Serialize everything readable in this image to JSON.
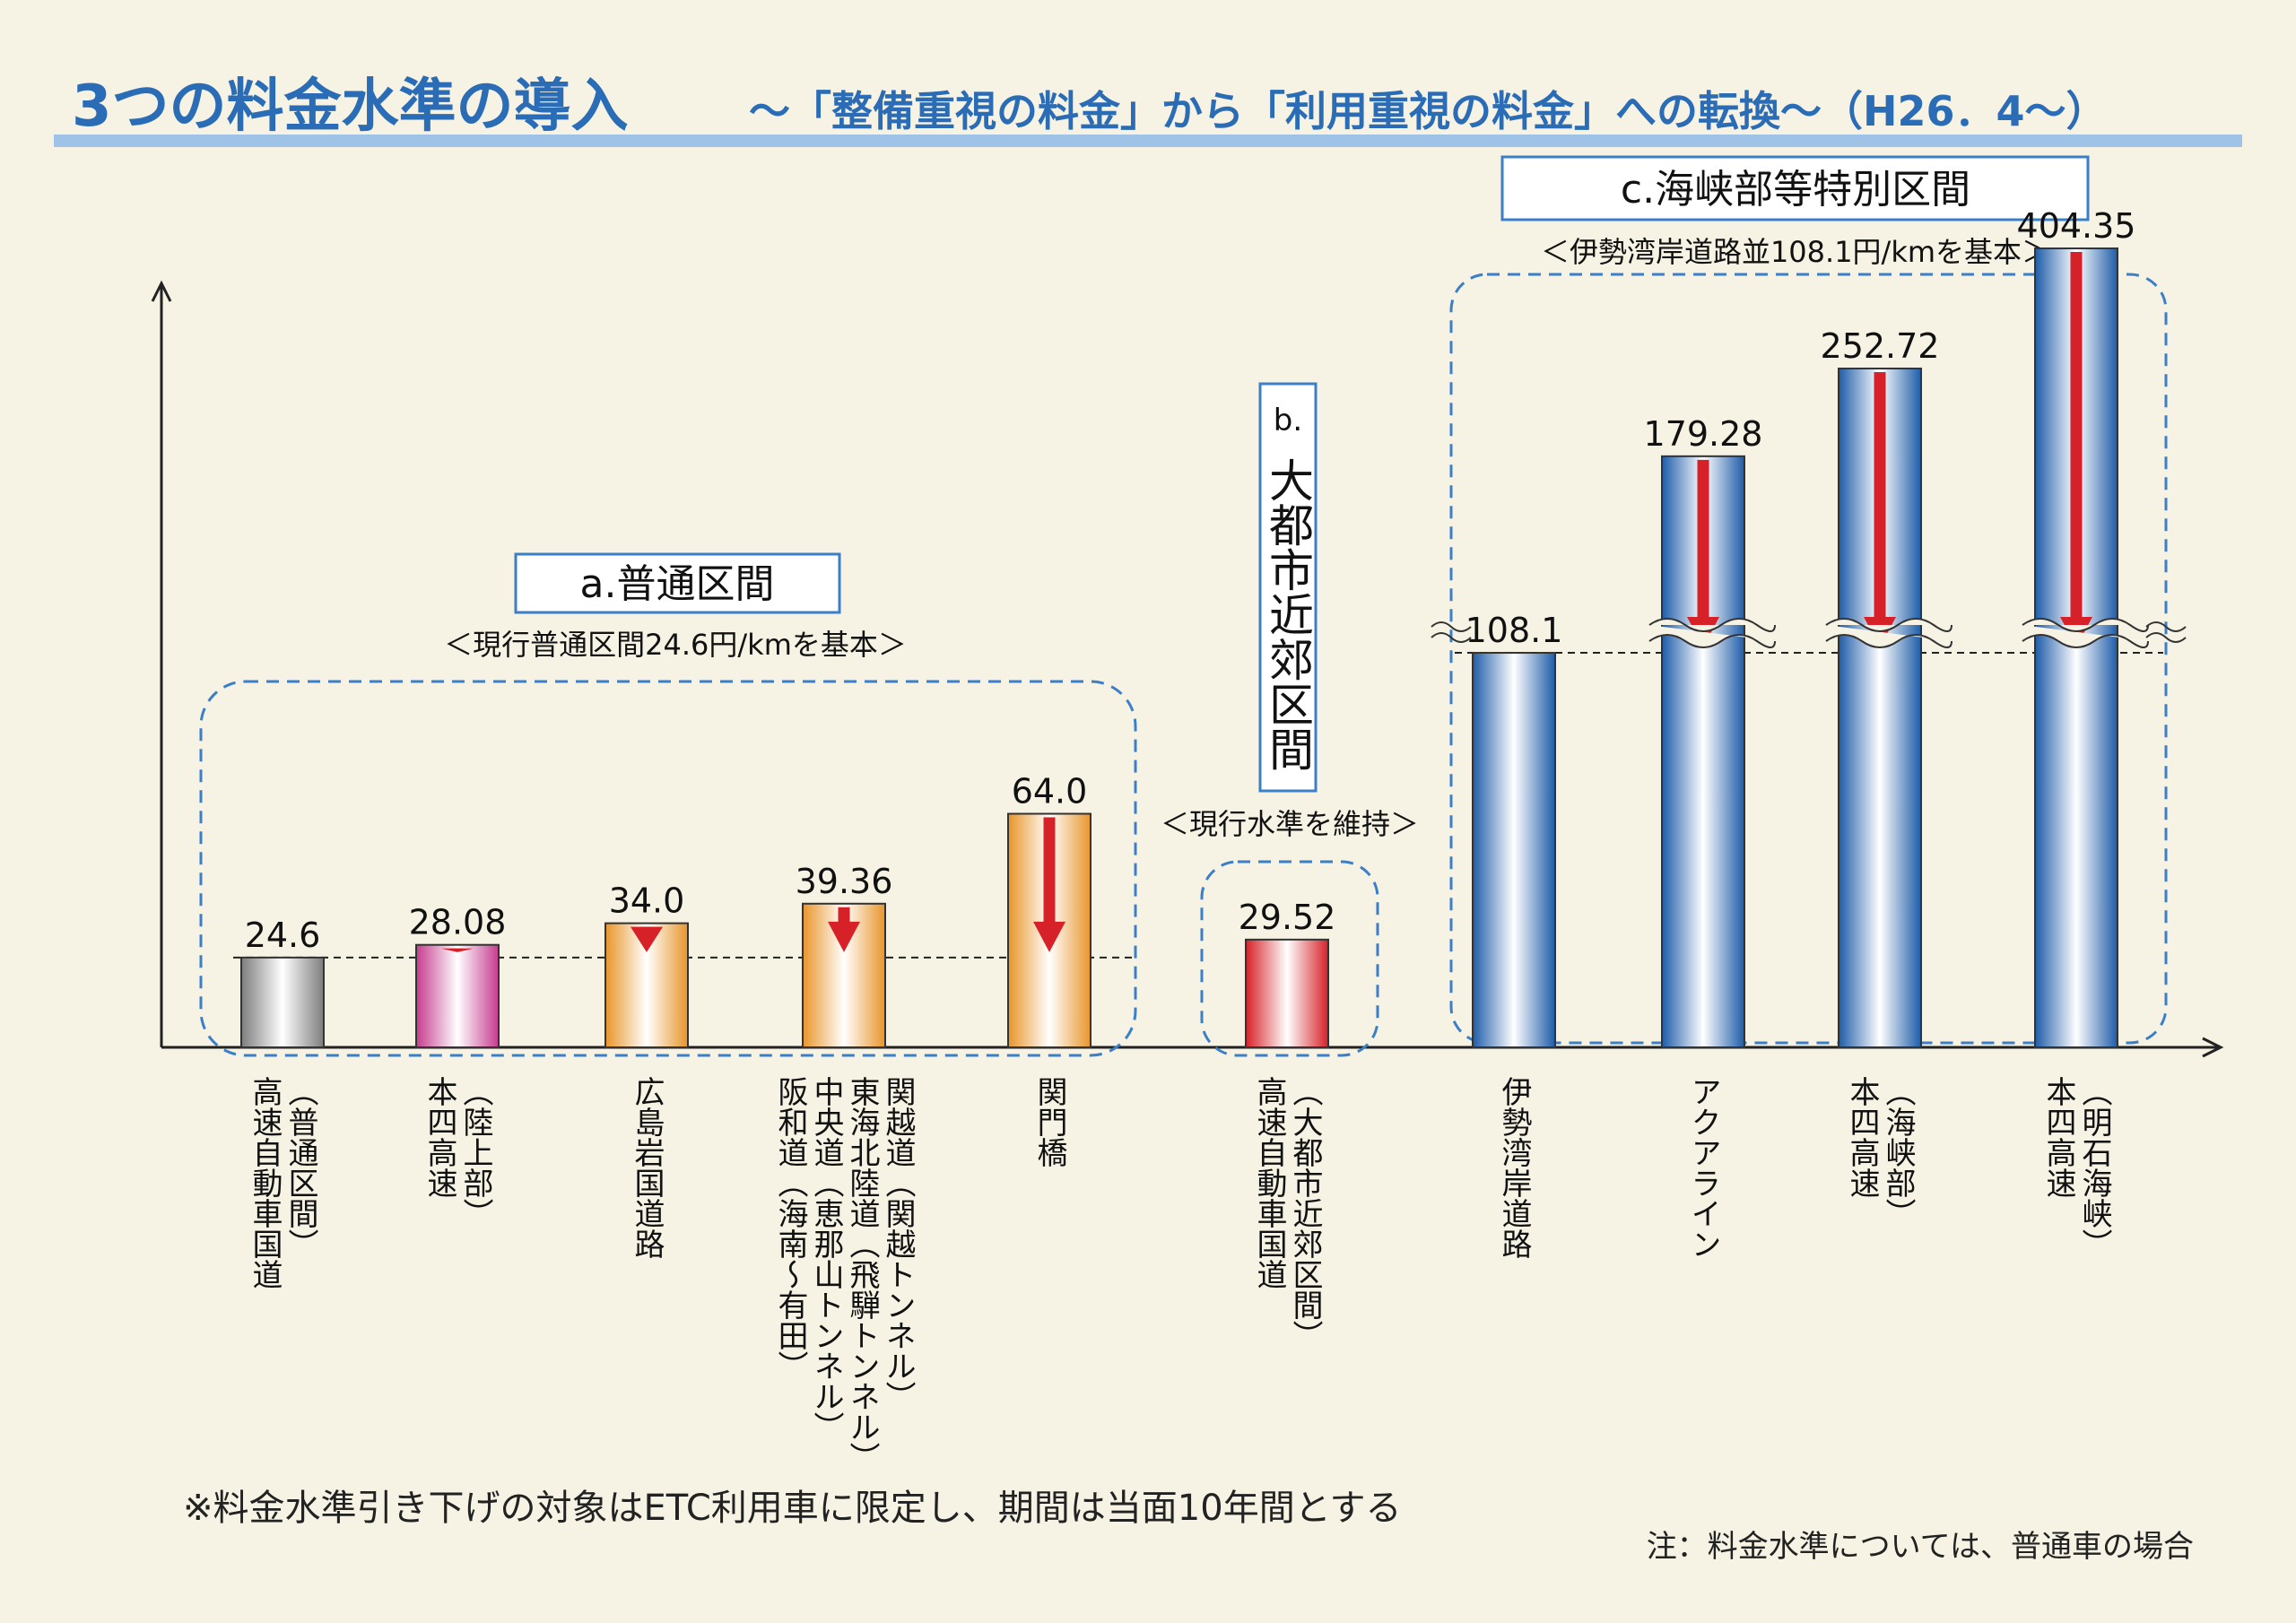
{
  "chart_data": {
    "type": "bar",
    "title": "3つの料金水準の導入",
    "subtitle": "～「整備重視の料金」から「利用重視の料金」への転換～（H26．4～）",
    "categories": [
      [
        "高速自動車国道",
        "（普通区間）"
      ],
      [
        "本四高速",
        "（陸上部）"
      ],
      [
        "広島岩国道路"
      ],
      [
        "阪和道（海南～有田）",
        "中央道（恵那山トンネル）",
        "東海北陸道（飛騨トンネル）",
        "関越道（関越トンネル）"
      ],
      [
        "関門橋"
      ],
      [
        "高速自動車国道",
        "（大都市近郊区間）"
      ],
      [
        "伊勢湾岸道路"
      ],
      [
        "アクアライン"
      ],
      [
        "本四高速",
        "（海峡部）"
      ],
      [
        "本四高速",
        "（明石海峡）"
      ]
    ],
    "values": [
      24.6,
      28.08,
      34,
      39.36,
      64,
      29.52,
      108.1,
      179.28,
      252.72,
      404.35
    ],
    "value_labels": [
      "24.6",
      "28.08",
      "34.0",
      "39.36",
      "64.0",
      "29.52",
      "108.1",
      "179.28",
      "252.72",
      "404.35"
    ],
    "colors": [
      "#7d7d7d",
      "#c63b8e",
      "#e8952a",
      "#e8952a",
      "#e8952a",
      "#d62128",
      "#1d5ca8",
      "#1d5ca8",
      "#1d5ca8",
      "#1d5ca8"
    ],
    "groups": [
      {
        "label": "a.普通区間",
        "note": "＜現行普通区間24.6円/kmを基本＞"
      },
      {
        "label": "b.",
        "name": "大都市近郊区間",
        "note": "＜現行水準を維持＞"
      },
      {
        "label": "c.海峡部等特別区間",
        "note": "＜伊勢湾岸道路並108.1円/kmを基本＞"
      }
    ],
    "axis_break": true,
    "footnote": "※料金水準引き下げの対象はETC利用車に限定し、期間は当面10年間とする",
    "note": "注：料金水準については、普通車の場合"
  }
}
